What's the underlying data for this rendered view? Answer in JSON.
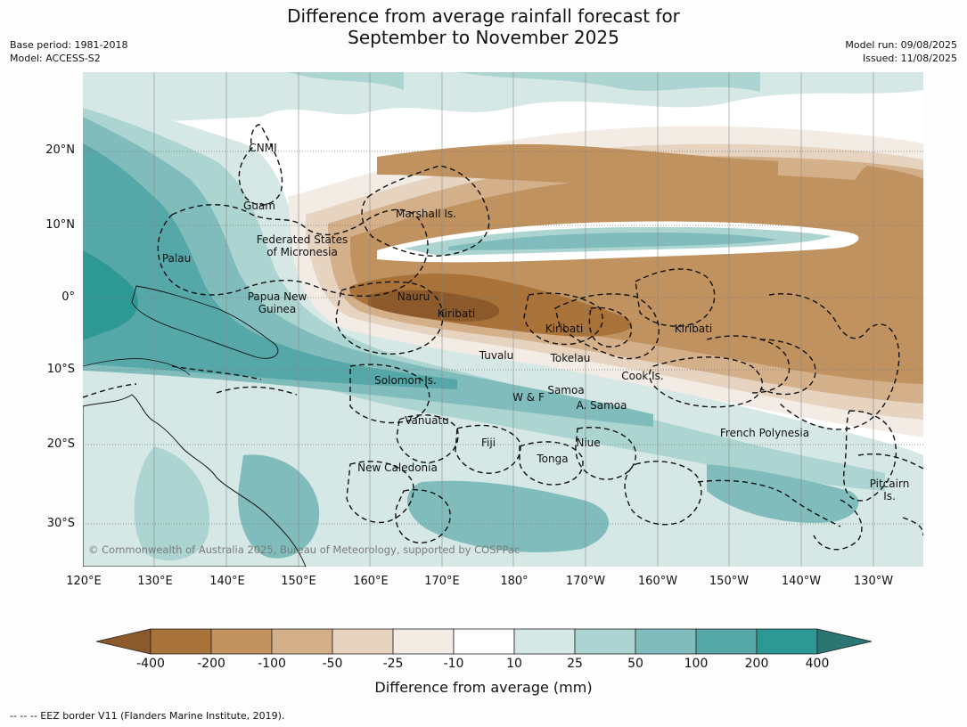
{
  "title_line1": "Difference from average rainfall forecast for",
  "title_line2": "September to November 2025",
  "base_period": "Base period: 1981-2018",
  "model": "Model: ACCESS-S2",
  "model_run": "Model run: 09/08/2025",
  "issued": "Issued: 11/08/2025",
  "lat_labels": [
    "20°N",
    "10°N",
    "0°",
    "10°S",
    "20°S",
    "30°S"
  ],
  "lon_labels": [
    "120°E",
    "130°E",
    "140°E",
    "150°E",
    "160°E",
    "170°E",
    "180°",
    "170°W",
    "160°W",
    "150°W",
    "140°W",
    "130°W"
  ],
  "regions": {
    "cnmi": "CNMI",
    "guam": "Guam",
    "micronesia": "Federated States\nof Micronesia",
    "marshall": "Marshall Is.",
    "palau": "Palau",
    "png": "Papua New\nGuinea",
    "nauru": "Nauru",
    "kiribati_w": "Kiribati",
    "kiribati_c": "Kiribati",
    "kiribati_e": "Kiribati",
    "tuvalu": "Tuvalu",
    "tokelau": "Tokelau",
    "cook": "Cook Is.",
    "solomon": "Solomon Is.",
    "samoa": "Samoa",
    "wf": "W & F",
    "asamoa": "A. Samoa",
    "vanuatu": "Vanuatu",
    "fiji": "Fiji",
    "niue": "Niue",
    "tonga": "Tonga",
    "frenchpoly": "French Polynesia",
    "newcal": "New Caledonia",
    "pitcairn": "Pitcairn\nIs."
  },
  "copyright": "© Commonwealth of Australia 2025, Bureau of Meteorology, supported by COSPPac",
  "colorbar": {
    "ticks": [
      "-400",
      "-200",
      "-100",
      "-50",
      "-25",
      "-10",
      "10",
      "25",
      "50",
      "100",
      "200",
      "400"
    ],
    "colors": [
      "#8c5a2a",
      "#a87239",
      "#c0925f",
      "#d4b08a",
      "#e6d3c0",
      "#f2ece5",
      "#ffffff",
      "#d6e8e6",
      "#acd4d1",
      "#80bcbc",
      "#56a8a8",
      "#2e9894",
      "#2a7672"
    ],
    "label": "Difference from average (mm)"
  },
  "footer": "-- -- -- EEZ border V11 (Flanders Marine Institute, 2019)."
}
